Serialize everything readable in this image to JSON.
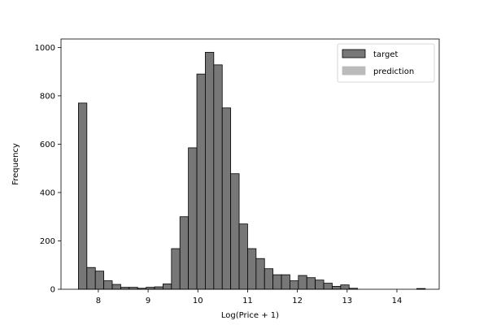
{
  "chart_data": {
    "type": "bar",
    "histogram": true,
    "xlabel": "Log(Price + 1)",
    "ylabel": "Frequency",
    "xlim": [
      7.25,
      14.85
    ],
    "ylim": [
      0,
      1035
    ],
    "xticks": [
      8,
      9,
      10,
      11,
      12,
      13,
      14
    ],
    "yticks": [
      0,
      200,
      400,
      600,
      800,
      1000
    ],
    "legend_position": "top-right",
    "grid": false,
    "series": [
      {
        "name": "target",
        "color": "#777777",
        "edgecolor": "#000000",
        "bin_start": 7.6,
        "bin_width": 0.17,
        "values": [
          770,
          90,
          75,
          35,
          20,
          8,
          8,
          4,
          8,
          10,
          22,
          168,
          300,
          585,
          890,
          980,
          928,
          750,
          478,
          270,
          168,
          127,
          85,
          60,
          60,
          35,
          57,
          48,
          38,
          25,
          12,
          18,
          4,
          0,
          0,
          0,
          0,
          0,
          0,
          0,
          3
        ]
      },
      {
        "name": "prediction",
        "color": "#bbbbbb",
        "edgecolor": "#bbbbbb",
        "values": []
      }
    ]
  }
}
